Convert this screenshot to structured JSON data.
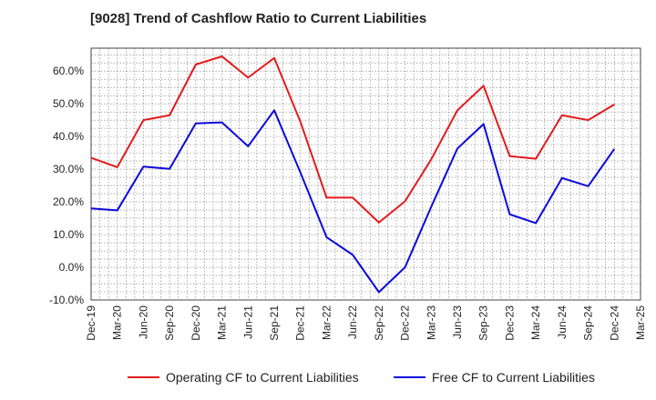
{
  "chart_data": {
    "type": "line",
    "title": "[9028]  Trend of Cashflow Ratio to Current Liabilities",
    "xlabel": "",
    "ylabel": "",
    "categories": [
      "Dec-19",
      "Mar-20",
      "Jun-20",
      "Sep-20",
      "Dec-20",
      "Mar-21",
      "Jun-21",
      "Sep-21",
      "Dec-21",
      "Mar-22",
      "Jun-22",
      "Sep-22",
      "Dec-22",
      "Mar-23",
      "Jun-23",
      "Sep-23",
      "Dec-23",
      "Mar-24",
      "Jun-24",
      "Sep-24",
      "Dec-24",
      "Mar-25"
    ],
    "yticks": [
      -10,
      0,
      10,
      20,
      30,
      40,
      50,
      60
    ],
    "ytick_labels": [
      "-10.0%",
      "0.0%",
      "10.0%",
      "20.0%",
      "30.0%",
      "40.0%",
      "50.0%",
      "60.0%"
    ],
    "ylim": [
      -10,
      67
    ],
    "grid": true,
    "legend_position": "bottom",
    "series": [
      {
        "name": "Operating CF to Current Liabilities",
        "color": "#e41a1c",
        "values": [
          33.5,
          30.6,
          45.0,
          46.5,
          62.0,
          64.5,
          58.0,
          64.0,
          44.5,
          21.3,
          21.3,
          13.7,
          20.2,
          33.0,
          48.0,
          55.5,
          34.0,
          33.2,
          46.5,
          45.0,
          49.8,
          null
        ]
      },
      {
        "name": "Free CF to Current Liabilities",
        "color": "#0a0adc",
        "values": [
          18.0,
          17.4,
          30.8,
          30.1,
          44.0,
          44.3,
          37.0,
          48.0,
          29.0,
          9.2,
          3.8,
          -7.6,
          0.0,
          18.5,
          36.3,
          43.8,
          16.2,
          13.5,
          27.3,
          24.8,
          36.2,
          null
        ]
      }
    ]
  }
}
